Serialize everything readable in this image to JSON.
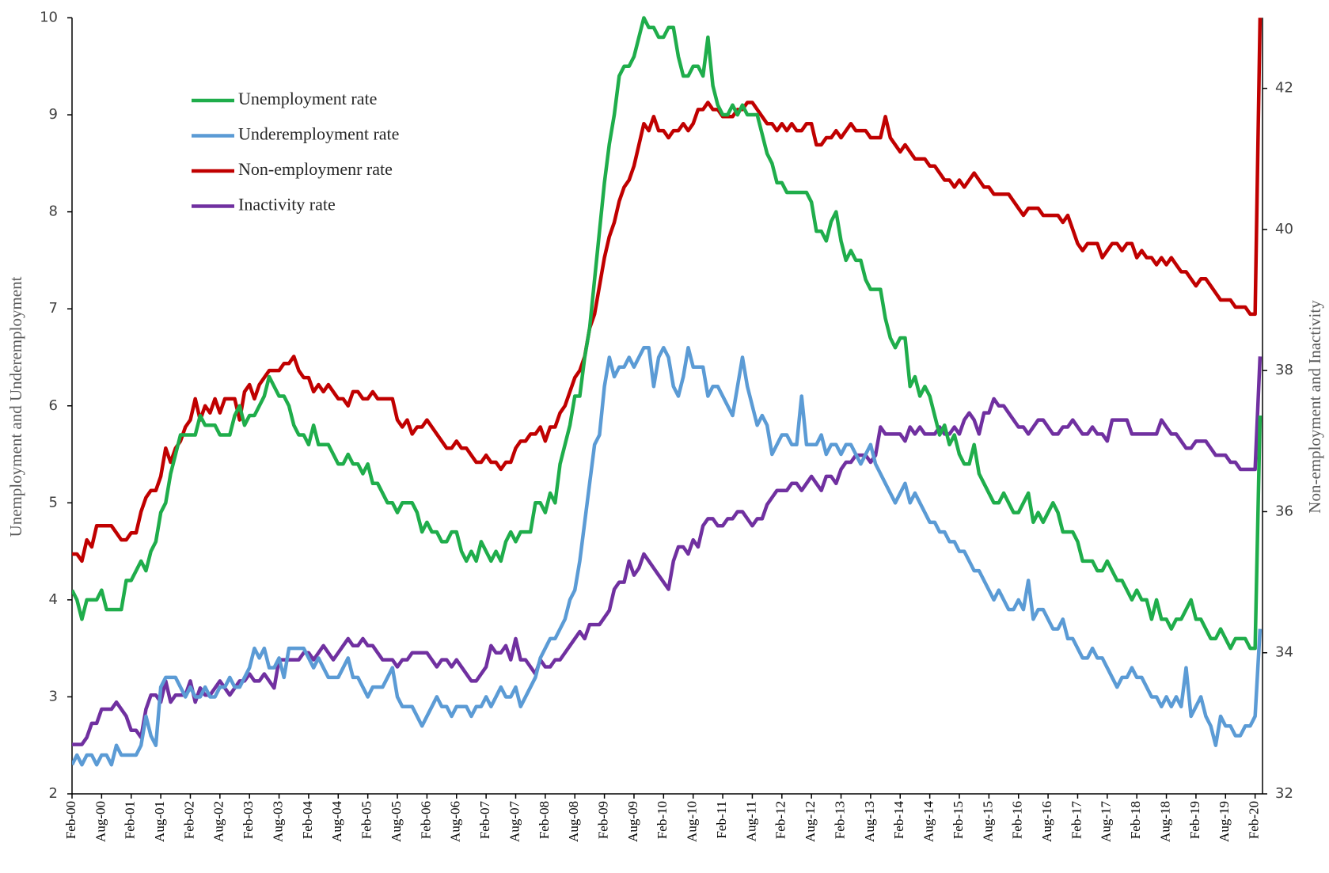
{
  "chart_data": {
    "type": "line",
    "y_label": "Unemployment and Underemployment",
    "y2_label": "Non-employment and Inactivity",
    "legend": "upper left",
    "grid": false,
    "categories": [
      "Feb-00",
      null,
      null,
      null,
      null,
      null,
      "Aug-00",
      null,
      null,
      null,
      null,
      null,
      "Feb-01",
      null,
      null,
      null,
      null,
      null,
      "Aug-01",
      null,
      null,
      null,
      null,
      null,
      "Feb-02",
      null,
      null,
      null,
      null,
      null,
      "Aug-02",
      null,
      null,
      null,
      null,
      null,
      "Feb-03",
      null,
      null,
      null,
      null,
      null,
      "Aug-03",
      null,
      null,
      null,
      null,
      null,
      "Feb-04",
      null,
      null,
      null,
      null,
      null,
      "Aug-04",
      null,
      null,
      null,
      null,
      null,
      "Feb-05",
      null,
      null,
      null,
      null,
      null,
      "Aug-05",
      null,
      null,
      null,
      null,
      null,
      "Feb-06",
      null,
      null,
      null,
      null,
      null,
      "Aug-06",
      null,
      null,
      null,
      null,
      null,
      "Feb-07",
      null,
      null,
      null,
      null,
      null,
      "Aug-07",
      null,
      null,
      null,
      null,
      null,
      "Feb-08",
      null,
      null,
      null,
      null,
      null,
      "Aug-08",
      null,
      null,
      null,
      null,
      null,
      "Feb-09",
      null,
      null,
      null,
      null,
      null,
      "Aug-09",
      null,
      null,
      null,
      null,
      null,
      "Feb-10",
      null,
      null,
      null,
      null,
      null,
      "Aug-10",
      null,
      null,
      null,
      null,
      null,
      "Feb-11",
      null,
      null,
      null,
      null,
      null,
      "Aug-11",
      null,
      null,
      null,
      null,
      null,
      "Feb-12",
      null,
      null,
      null,
      null,
      null,
      "Aug-12",
      null,
      null,
      null,
      null,
      null,
      "Feb-13",
      null,
      null,
      null,
      null,
      null,
      "Aug-13",
      null,
      null,
      null,
      null,
      null,
      "Feb-14",
      null,
      null,
      null,
      null,
      null,
      "Aug-14",
      null,
      null,
      null,
      null,
      null,
      "Feb-15",
      null,
      null,
      null,
      null,
      null,
      "Aug-15",
      null,
      null,
      null,
      null,
      null,
      "Feb-16",
      null,
      null,
      null,
      null,
      null,
      "Aug-16",
      null,
      null,
      null,
      null,
      null,
      "Feb-17",
      null,
      null,
      null,
      null,
      null,
      "Aug-17",
      null,
      null,
      null,
      null,
      null,
      "Feb-18",
      null,
      null,
      null,
      null,
      null,
      "Aug-18",
      null,
      null,
      null,
      null,
      null,
      "Feb-19",
      null,
      null,
      null,
      null,
      null,
      "Aug-19",
      null,
      null,
      null,
      null,
      null,
      "Feb-20",
      null
    ],
    "ylim": [
      2,
      10
    ],
    "yticks": [
      2,
      3,
      4,
      5,
      6,
      7,
      8,
      9,
      10
    ],
    "y2lim": [
      32,
      43
    ],
    "y2ticks": [
      32,
      34,
      36,
      38,
      40,
      42
    ],
    "series": [
      {
        "name": "Unemployment rate",
        "color": "#1fad4b",
        "axis": "y",
        "values": [
          4.1,
          4.0,
          3.8,
          4.0,
          4.0,
          4.0,
          4.1,
          3.9,
          3.9,
          3.9,
          3.9,
          4.2,
          4.2,
          4.3,
          4.4,
          4.3,
          4.5,
          4.6,
          4.9,
          5.0,
          5.3,
          5.5,
          5.7,
          5.7,
          5.7,
          5.7,
          5.9,
          5.8,
          5.8,
          5.8,
          5.7,
          5.7,
          5.7,
          5.9,
          6.0,
          5.8,
          5.9,
          5.9,
          6.0,
          6.1,
          6.3,
          6.2,
          6.1,
          6.1,
          6.0,
          5.8,
          5.7,
          5.7,
          5.6,
          5.8,
          5.6,
          5.6,
          5.6,
          5.5,
          5.4,
          5.4,
          5.5,
          5.4,
          5.4,
          5.3,
          5.4,
          5.2,
          5.2,
          5.1,
          5.0,
          5.0,
          4.9,
          5.0,
          5.0,
          5.0,
          4.9,
          4.7,
          4.8,
          4.7,
          4.7,
          4.6,
          4.6,
          4.7,
          4.7,
          4.5,
          4.4,
          4.5,
          4.4,
          4.6,
          4.5,
          4.4,
          4.5,
          4.4,
          4.6,
          4.7,
          4.6,
          4.7,
          4.7,
          4.7,
          5.0,
          5.0,
          4.9,
          5.1,
          5.0,
          5.4,
          5.6,
          5.8,
          6.1,
          6.1,
          6.5,
          6.8,
          7.3,
          7.8,
          8.3,
          8.7,
          9.0,
          9.4,
          9.5,
          9.5,
          9.6,
          9.8,
          10.0,
          9.9,
          9.9,
          9.8,
          9.8,
          9.9,
          9.9,
          9.6,
          9.4,
          9.4,
          9.5,
          9.5,
          9.4,
          9.8,
          9.3,
          9.1,
          9.0,
          9.0,
          9.1,
          9.0,
          9.1,
          9.0,
          9.0,
          9.0,
          8.8,
          8.6,
          8.5,
          8.3,
          8.3,
          8.2,
          8.2,
          8.2,
          8.2,
          8.2,
          8.1,
          7.8,
          7.8,
          7.7,
          7.9,
          8.0,
          7.7,
          7.5,
          7.6,
          7.5,
          7.5,
          7.3,
          7.2,
          7.2,
          7.2,
          6.9,
          6.7,
          6.6,
          6.7,
          6.7,
          6.2,
          6.3,
          6.1,
          6.2,
          6.1,
          5.9,
          5.7,
          5.8,
          5.6,
          5.7,
          5.5,
          5.4,
          5.4,
          5.6,
          5.3,
          5.2,
          5.1,
          5.0,
          5.0,
          5.1,
          5.0,
          4.9,
          4.9,
          5.0,
          5.1,
          4.8,
          4.9,
          4.8,
          4.9,
          5.0,
          4.9,
          4.7,
          4.7,
          4.7,
          4.6,
          4.4,
          4.4,
          4.4,
          4.3,
          4.3,
          4.4,
          4.3,
          4.2,
          4.2,
          4.1,
          4.0,
          4.1,
          4.0,
          4.0,
          3.8,
          4.0,
          3.8,
          3.8,
          3.7,
          3.8,
          3.8,
          3.9,
          4.0,
          3.8,
          3.8,
          3.7,
          3.6,
          3.6,
          3.7,
          3.6,
          3.5,
          3.6,
          3.6,
          3.6,
          3.5,
          3.5,
          5.9
        ]
      },
      {
        "name": "Underemployment rate",
        "color": "#5b9bd5",
        "axis": "y",
        "values": [
          2.3,
          2.4,
          2.3,
          2.4,
          2.4,
          2.3,
          2.4,
          2.4,
          2.3,
          2.5,
          2.4,
          2.4,
          2.4,
          2.4,
          2.5,
          2.8,
          2.6,
          2.5,
          3.1,
          3.2,
          3.2,
          3.2,
          3.1,
          3.0,
          3.1,
          3.0,
          3.0,
          3.1,
          3.0,
          3.0,
          3.1,
          3.1,
          3.2,
          3.1,
          3.1,
          3.2,
          3.3,
          3.5,
          3.4,
          3.5,
          3.3,
          3.3,
          3.4,
          3.2,
          3.5,
          3.5,
          3.5,
          3.5,
          3.4,
          3.3,
          3.4,
          3.3,
          3.2,
          3.2,
          3.2,
          3.3,
          3.4,
          3.2,
          3.2,
          3.1,
          3.0,
          3.1,
          3.1,
          3.1,
          3.2,
          3.3,
          3.0,
          2.9,
          2.9,
          2.9,
          2.8,
          2.7,
          2.8,
          2.9,
          3.0,
          2.9,
          2.9,
          2.8,
          2.9,
          2.9,
          2.9,
          2.8,
          2.9,
          2.9,
          3.0,
          2.9,
          3.0,
          3.1,
          3.0,
          3.0,
          3.1,
          2.9,
          3.0,
          3.1,
          3.2,
          3.4,
          3.5,
          3.6,
          3.6,
          3.7,
          3.8,
          4.0,
          4.1,
          4.4,
          4.8,
          5.2,
          5.6,
          5.7,
          6.2,
          6.5,
          6.3,
          6.4,
          6.4,
          6.5,
          6.4,
          6.5,
          6.6,
          6.6,
          6.2,
          6.5,
          6.6,
          6.5,
          6.2,
          6.1,
          6.3,
          6.6,
          6.4,
          6.4,
          6.4,
          6.1,
          6.2,
          6.2,
          6.1,
          6.0,
          5.9,
          6.2,
          6.5,
          6.2,
          6.0,
          5.8,
          5.9,
          5.8,
          5.5,
          5.6,
          5.7,
          5.7,
          5.6,
          5.6,
          6.1,
          5.6,
          5.6,
          5.6,
          5.7,
          5.5,
          5.6,
          5.6,
          5.5,
          5.6,
          5.6,
          5.5,
          5.4,
          5.5,
          5.6,
          5.4,
          5.3,
          5.2,
          5.1,
          5.0,
          5.1,
          5.2,
          5.0,
          5.1,
          5.0,
          4.9,
          4.8,
          4.8,
          4.7,
          4.7,
          4.6,
          4.6,
          4.5,
          4.5,
          4.4,
          4.3,
          4.3,
          4.2,
          4.1,
          4.0,
          4.1,
          4.0,
          3.9,
          3.9,
          4.0,
          3.9,
          4.2,
          3.8,
          3.9,
          3.9,
          3.8,
          3.7,
          3.7,
          3.8,
          3.6,
          3.6,
          3.5,
          3.4,
          3.4,
          3.5,
          3.4,
          3.4,
          3.3,
          3.2,
          3.1,
          3.2,
          3.2,
          3.3,
          3.2,
          3.2,
          3.1,
          3.0,
          3.0,
          2.9,
          3.0,
          2.9,
          3.0,
          2.9,
          3.3,
          2.8,
          2.9,
          3.0,
          2.8,
          2.7,
          2.5,
          2.8,
          2.7,
          2.7,
          2.6,
          2.6,
          2.7,
          2.7,
          2.8,
          3.7
        ]
      },
      {
        "name": "Non-employmenr rate",
        "color": "#c00000",
        "axis": "y2",
        "values": [
          35.4,
          35.4,
          35.3,
          35.6,
          35.5,
          35.8,
          35.8,
          35.8,
          35.8,
          35.7,
          35.6,
          35.6,
          35.7,
          35.7,
          36.0,
          36.2,
          36.3,
          36.3,
          36.5,
          36.9,
          36.7,
          36.9,
          37.0,
          37.2,
          37.3,
          37.6,
          37.3,
          37.5,
          37.4,
          37.6,
          37.4,
          37.6,
          37.6,
          37.6,
          37.3,
          37.7,
          37.8,
          37.6,
          37.8,
          37.9,
          38.0,
          38.0,
          38.0,
          38.1,
          38.1,
          38.2,
          38.0,
          37.9,
          37.9,
          37.7,
          37.8,
          37.7,
          37.8,
          37.7,
          37.6,
          37.6,
          37.5,
          37.7,
          37.7,
          37.6,
          37.6,
          37.7,
          37.6,
          37.6,
          37.6,
          37.6,
          37.3,
          37.2,
          37.3,
          37.1,
          37.2,
          37.2,
          37.3,
          37.2,
          37.1,
          37.0,
          36.9,
          36.9,
          37.0,
          36.9,
          36.9,
          36.8,
          36.7,
          36.7,
          36.8,
          36.7,
          36.7,
          36.6,
          36.7,
          36.7,
          36.9,
          37.0,
          37.0,
          37.1,
          37.1,
          37.2,
          37.0,
          37.2,
          37.2,
          37.4,
          37.5,
          37.7,
          37.9,
          38.0,
          38.2,
          38.6,
          38.8,
          39.2,
          39.6,
          39.9,
          40.1,
          40.4,
          40.6,
          40.7,
          40.9,
          41.2,
          41.5,
          41.4,
          41.6,
          41.4,
          41.4,
          41.3,
          41.4,
          41.4,
          41.5,
          41.4,
          41.5,
          41.7,
          41.7,
          41.8,
          41.7,
          41.7,
          41.6,
          41.6,
          41.6,
          41.7,
          41.7,
          41.8,
          41.8,
          41.7,
          41.6,
          41.5,
          41.5,
          41.4,
          41.5,
          41.4,
          41.5,
          41.4,
          41.4,
          41.5,
          41.5,
          41.2,
          41.2,
          41.3,
          41.3,
          41.4,
          41.3,
          41.4,
          41.5,
          41.4,
          41.4,
          41.4,
          41.3,
          41.3,
          41.3,
          41.6,
          41.3,
          41.2,
          41.1,
          41.2,
          41.1,
          41.0,
          41.0,
          41.0,
          40.9,
          40.9,
          40.8,
          40.7,
          40.7,
          40.6,
          40.7,
          40.6,
          40.7,
          40.8,
          40.7,
          40.6,
          40.6,
          40.5,
          40.5,
          40.5,
          40.5,
          40.4,
          40.3,
          40.2,
          40.3,
          40.3,
          40.3,
          40.2,
          40.2,
          40.2,
          40.2,
          40.1,
          40.2,
          40.0,
          39.8,
          39.7,
          39.8,
          39.8,
          39.8,
          39.6,
          39.7,
          39.8,
          39.8,
          39.7,
          39.8,
          39.8,
          39.6,
          39.7,
          39.6,
          39.6,
          39.5,
          39.6,
          39.5,
          39.6,
          39.5,
          39.4,
          39.4,
          39.3,
          39.2,
          39.3,
          39.3,
          39.2,
          39.1,
          39.0,
          39.0,
          39.0,
          38.9,
          38.9,
          38.9,
          38.8,
          38.8,
          43.0
        ]
      },
      {
        "name": "Inactivity rate",
        "color": "#7030a0",
        "axis": "y2",
        "values": [
          32.7,
          32.7,
          32.7,
          32.8,
          33.0,
          33.0,
          33.2,
          33.2,
          33.2,
          33.3,
          33.2,
          33.1,
          32.9,
          32.9,
          32.8,
          33.2,
          33.4,
          33.4,
          33.3,
          33.6,
          33.3,
          33.4,
          33.4,
          33.4,
          33.6,
          33.3,
          33.5,
          33.4,
          33.4,
          33.5,
          33.6,
          33.5,
          33.4,
          33.5,
          33.6,
          33.6,
          33.7,
          33.6,
          33.6,
          33.7,
          33.6,
          33.5,
          33.9,
          33.9,
          33.9,
          33.9,
          33.9,
          34.0,
          34.0,
          33.9,
          34.0,
          34.1,
          34.0,
          33.9,
          34.0,
          34.1,
          34.2,
          34.1,
          34.1,
          34.2,
          34.1,
          34.1,
          34.0,
          33.9,
          33.9,
          33.9,
          33.8,
          33.9,
          33.9,
          34.0,
          34.0,
          34.0,
          34.0,
          33.9,
          33.8,
          33.9,
          33.9,
          33.8,
          33.9,
          33.8,
          33.7,
          33.6,
          33.6,
          33.7,
          33.8,
          34.1,
          34.0,
          34.0,
          34.1,
          33.9,
          34.2,
          33.9,
          33.9,
          33.8,
          33.7,
          33.9,
          33.8,
          33.8,
          33.9,
          33.9,
          34.0,
          34.1,
          34.2,
          34.3,
          34.2,
          34.4,
          34.4,
          34.4,
          34.5,
          34.6,
          34.9,
          35.0,
          35.0,
          35.3,
          35.1,
          35.2,
          35.4,
          35.3,
          35.2,
          35.1,
          35.0,
          34.9,
          35.3,
          35.5,
          35.5,
          35.4,
          35.6,
          35.5,
          35.8,
          35.9,
          35.9,
          35.8,
          35.8,
          35.9,
          35.9,
          36.0,
          36.0,
          35.9,
          35.8,
          35.9,
          35.9,
          36.1,
          36.2,
          36.3,
          36.3,
          36.3,
          36.4,
          36.4,
          36.3,
          36.4,
          36.5,
          36.4,
          36.3,
          36.5,
          36.5,
          36.4,
          36.6,
          36.7,
          36.7,
          36.8,
          36.8,
          36.8,
          36.7,
          36.8,
          37.2,
          37.1,
          37.1,
          37.1,
          37.1,
          37.0,
          37.2,
          37.1,
          37.2,
          37.1,
          37.1,
          37.1,
          37.2,
          37.1,
          37.1,
          37.2,
          37.1,
          37.3,
          37.4,
          37.3,
          37.1,
          37.4,
          37.4,
          37.6,
          37.5,
          37.5,
          37.4,
          37.3,
          37.2,
          37.2,
          37.1,
          37.2,
          37.3,
          37.3,
          37.2,
          37.1,
          37.1,
          37.2,
          37.2,
          37.3,
          37.2,
          37.1,
          37.1,
          37.2,
          37.1,
          37.1,
          37.0,
          37.3,
          37.3,
          37.3,
          37.3,
          37.1,
          37.1,
          37.1,
          37.1,
          37.1,
          37.1,
          37.3,
          37.2,
          37.1,
          37.1,
          37.0,
          36.9,
          36.9,
          37.0,
          37.0,
          37.0,
          36.9,
          36.8,
          36.8,
          36.8,
          36.7,
          36.7,
          36.6,
          36.6,
          36.6,
          36.6,
          38.2
        ]
      }
    ]
  }
}
